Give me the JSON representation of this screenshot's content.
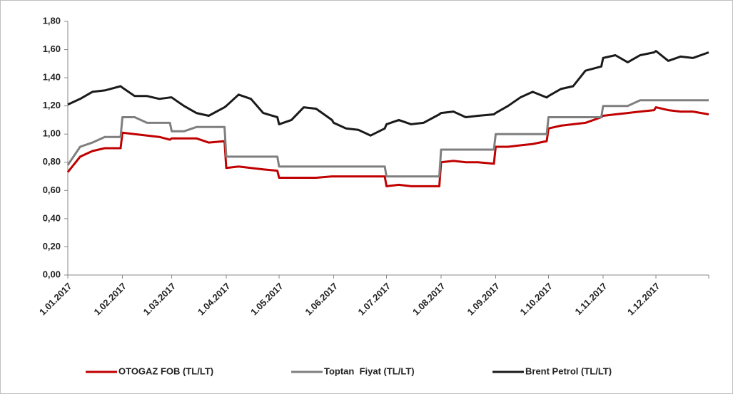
{
  "chart_data": {
    "type": "line",
    "x": [
      "2017-01-01",
      "2017-01-08",
      "2017-01-15",
      "2017-01-22",
      "2017-01-31",
      "2017-02-01",
      "2017-02-08",
      "2017-02-15",
      "2017-02-22",
      "2017-02-28",
      "2017-03-01",
      "2017-03-08",
      "2017-03-15",
      "2017-03-22",
      "2017-03-31",
      "2017-04-01",
      "2017-04-08",
      "2017-04-15",
      "2017-04-22",
      "2017-04-30",
      "2017-05-01",
      "2017-05-08",
      "2017-05-15",
      "2017-05-22",
      "2017-05-31",
      "2017-06-01",
      "2017-06-08",
      "2017-06-15",
      "2017-06-22",
      "2017-06-30",
      "2017-07-01",
      "2017-07-08",
      "2017-07-15",
      "2017-07-22",
      "2017-07-31",
      "2017-08-01",
      "2017-08-08",
      "2017-08-15",
      "2017-08-22",
      "2017-08-31",
      "2017-09-01",
      "2017-09-08",
      "2017-09-15",
      "2017-09-22",
      "2017-09-30",
      "2017-10-01",
      "2017-10-08",
      "2017-10-15",
      "2017-10-22",
      "2017-10-31",
      "2017-11-01",
      "2017-11-08",
      "2017-11-15",
      "2017-11-22",
      "2017-11-30",
      "2017-12-01",
      "2017-12-08",
      "2017-12-15",
      "2017-12-22",
      "2017-12-31"
    ],
    "series": [
      {
        "name": "OTOGAZ FOB (TL/LT)",
        "color": "#c00000",
        "values": [
          0.73,
          0.84,
          0.88,
          0.9,
          0.9,
          1.01,
          1.0,
          0.99,
          0.98,
          0.96,
          0.97,
          0.97,
          0.97,
          0.94,
          0.95,
          0.76,
          0.77,
          0.76,
          0.75,
          0.74,
          0.69,
          0.69,
          0.69,
          0.69,
          0.7,
          0.7,
          0.7,
          0.7,
          0.7,
          0.7,
          0.63,
          0.64,
          0.63,
          0.63,
          0.63,
          0.8,
          0.81,
          0.8,
          0.8,
          0.79,
          0.91,
          0.91,
          0.92,
          0.93,
          0.95,
          1.04,
          1.06,
          1.07,
          1.08,
          1.12,
          1.13,
          1.14,
          1.15,
          1.16,
          1.17,
          1.19,
          1.17,
          1.16,
          1.16,
          1.14
        ]
      },
      {
        "name": "Toptan  Fiyat (TL/LT)",
        "color": "#7f7f7f",
        "values": [
          0.78,
          0.91,
          0.94,
          0.98,
          0.98,
          1.12,
          1.12,
          1.08,
          1.08,
          1.08,
          1.02,
          1.02,
          1.05,
          1.05,
          1.05,
          0.84,
          0.84,
          0.84,
          0.84,
          0.84,
          0.77,
          0.77,
          0.77,
          0.77,
          0.77,
          0.77,
          0.77,
          0.77,
          0.77,
          0.77,
          0.7,
          0.7,
          0.7,
          0.7,
          0.7,
          0.89,
          0.89,
          0.89,
          0.89,
          0.89,
          1.0,
          1.0,
          1.0,
          1.0,
          1.0,
          1.12,
          1.12,
          1.12,
          1.12,
          1.12,
          1.2,
          1.2,
          1.2,
          1.24,
          1.24,
          1.24,
          1.24,
          1.24,
          1.24,
          1.24
        ]
      },
      {
        "name": "Brent Petrol (TL/LT)",
        "color": "#1a1a1a",
        "values": [
          1.21,
          1.25,
          1.3,
          1.31,
          1.34,
          1.33,
          1.27,
          1.27,
          1.25,
          1.26,
          1.26,
          1.2,
          1.15,
          1.13,
          1.19,
          1.2,
          1.28,
          1.25,
          1.15,
          1.12,
          1.07,
          1.1,
          1.19,
          1.18,
          1.1,
          1.08,
          1.04,
          1.03,
          0.99,
          1.04,
          1.07,
          1.1,
          1.07,
          1.08,
          1.14,
          1.15,
          1.16,
          1.12,
          1.13,
          1.14,
          1.15,
          1.2,
          1.26,
          1.3,
          1.26,
          1.27,
          1.32,
          1.34,
          1.45,
          1.48,
          1.54,
          1.56,
          1.51,
          1.56,
          1.58,
          1.59,
          1.52,
          1.55,
          1.54,
          1.58
        ]
      }
    ],
    "xlim": [
      "2017-01-01",
      "2017-12-31"
    ],
    "xticks": [
      {
        "value": "2017-01-01",
        "label": "1.01.2017"
      },
      {
        "value": "2017-02-01",
        "label": "1.02.2017"
      },
      {
        "value": "2017-03-01",
        "label": "1.03.2017"
      },
      {
        "value": "2017-04-01",
        "label": "1.04.2017"
      },
      {
        "value": "2017-05-01",
        "label": "1.05.2017"
      },
      {
        "value": "2017-06-01",
        "label": "1.06.2017"
      },
      {
        "value": "2017-07-01",
        "label": "1.07.2017"
      },
      {
        "value": "2017-08-01",
        "label": "1.08.2017"
      },
      {
        "value": "2017-09-01",
        "label": "1.09.2017"
      },
      {
        "value": "2017-10-01",
        "label": "1.10.2017"
      },
      {
        "value": "2017-11-01",
        "label": "1.11.2017"
      },
      {
        "value": "2017-12-01",
        "label": "1.12.2017"
      }
    ],
    "ylim": [
      0,
      1.8
    ],
    "yticks": [
      {
        "value": 0,
        "label": "0,00"
      },
      {
        "value": 0.2,
        "label": "0,20"
      },
      {
        "value": 0.4,
        "label": "0,40"
      },
      {
        "value": 0.6,
        "label": "0,60"
      },
      {
        "value": 0.8,
        "label": "0,80"
      },
      {
        "value": 1.0,
        "label": "1,00"
      },
      {
        "value": 1.2,
        "label": "1,20"
      },
      {
        "value": 1.4,
        "label": "1,40"
      },
      {
        "value": 1.6,
        "label": "1,60"
      },
      {
        "value": 1.8,
        "label": "1,80"
      }
    ],
    "grid": false,
    "legend": "bottom"
  }
}
